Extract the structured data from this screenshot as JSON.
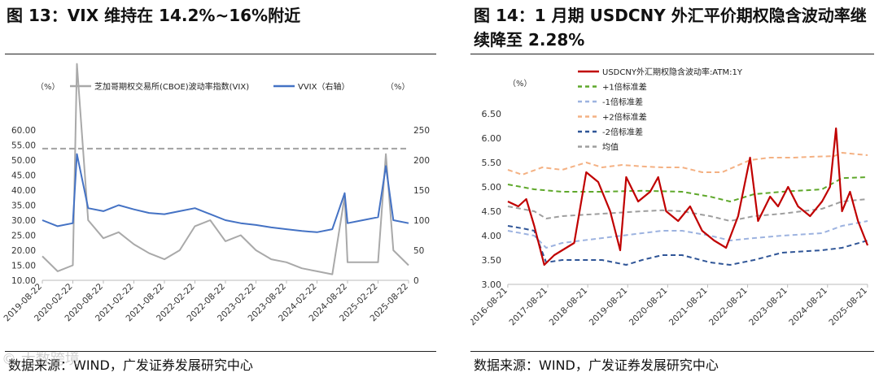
{
  "left": {
    "title": "图 13：VIX 维持在 14.2%~16%附近",
    "source": "数据来源：WIND，广发证券发展研究中心"
  },
  "right": {
    "title_line1": "图 14：1 月期 USDCNY 外汇平价期权隐含波动率继",
    "title_line2": "续降至 2.28%",
    "source": "数据来源：WIND，广发证券发展研究中心"
  },
  "watermark": "© 大数跨境",
  "colors": {
    "vix": "#a9a9a9",
    "vvix": "#4472c4",
    "usdcny": "#c00000",
    "sd1": "#5fa82b",
    "sdm1": "#9db3e0",
    "sd2": "#f4b183",
    "sdm2": "#2f5597",
    "mean": "#9e9e9e"
  },
  "chart_data": [
    {
      "type": "line",
      "title": "VIX 维持在 14.2%~16%附近",
      "yunit_left": "（%）",
      "yunit_right": "（%）",
      "x_ticks": [
        "2019-08-22",
        "2020-02-22",
        "2020-08-22",
        "2021-02-22",
        "2021-08-22",
        "2022-02-22",
        "2022-08-22",
        "2023-02-22",
        "2023-08-22",
        "2024-02-22",
        "2024-08-22",
        "2025-02-22",
        "2025-08-22"
      ],
      "y_left_ticks": [
        "10.00",
        "15.00",
        "20.00",
        "25.00",
        "30.00",
        "35.00",
        "40.00",
        "45.00",
        "50.00",
        "55.00",
        "60.00"
      ],
      "y_left_range": [
        10,
        60
      ],
      "y_right_ticks": [
        "0",
        "50",
        "100",
        "150",
        "200",
        "250"
      ],
      "y_right_range": [
        0,
        250
      ],
      "reference_line": {
        "axis": "left",
        "value": 53.8,
        "style": "dashed"
      },
      "series": [
        {
          "name": "芝加哥期权交易所(CBOE)波动率指数(VIX)",
          "axis": "left",
          "x": [
            "2019-08-22",
            "2019-11-22",
            "2020-02-22",
            "2020-03-16",
            "2020-05-22",
            "2020-08-22",
            "2020-11-22",
            "2021-02-22",
            "2021-05-22",
            "2021-08-22",
            "2021-11-22",
            "2022-02-22",
            "2022-05-22",
            "2022-08-22",
            "2022-11-22",
            "2023-02-22",
            "2023-05-22",
            "2023-08-22",
            "2023-11-22",
            "2024-02-22",
            "2024-05-22",
            "2024-08-05",
            "2024-08-22",
            "2024-11-22",
            "2025-02-22",
            "2025-04-08",
            "2025-05-22",
            "2025-08-22"
          ],
          "values": [
            18,
            13,
            15,
            82,
            30,
            24,
            26,
            22,
            19,
            17,
            20,
            28,
            30,
            23,
            25,
            20,
            17,
            16,
            14,
            13,
            12,
            38,
            16,
            16,
            16,
            52,
            20,
            15
          ]
        },
        {
          "name": "VVIX（右轴）",
          "axis": "right",
          "x": [
            "2019-08-22",
            "2019-11-22",
            "2020-02-22",
            "2020-03-16",
            "2020-05-22",
            "2020-08-22",
            "2020-11-22",
            "2021-02-22",
            "2021-05-22",
            "2021-08-22",
            "2021-11-22",
            "2022-02-22",
            "2022-05-22",
            "2022-08-22",
            "2022-11-22",
            "2023-02-22",
            "2023-05-22",
            "2023-08-22",
            "2023-11-22",
            "2024-02-22",
            "2024-05-22",
            "2024-08-05",
            "2024-08-22",
            "2024-11-22",
            "2025-02-22",
            "2025-04-08",
            "2025-05-22",
            "2025-08-22"
          ],
          "values": [
            100,
            90,
            95,
            210,
            120,
            115,
            125,
            118,
            112,
            110,
            115,
            120,
            110,
            100,
            95,
            92,
            88,
            85,
            82,
            80,
            85,
            145,
            95,
            100,
            105,
            190,
            100,
            95
          ]
        }
      ]
    },
    {
      "type": "line",
      "title": "1 月期 USDCNY 外汇平价期权隐含波动率继续降至 2.28%",
      "yunit": "（%）",
      "x_ticks": [
        "2016-08-21",
        "2017-08-21",
        "2018-08-21",
        "2019-08-21",
        "2020-08-21",
        "2021-08-21",
        "2022-08-21",
        "2023-08-21",
        "2024-08-21",
        "2025-08-21"
      ],
      "y_ticks": [
        "3.00",
        "3.50",
        "4.00",
        "4.50",
        "5.00",
        "5.50",
        "6.00",
        "6.50"
      ],
      "y_range": [
        3.0,
        6.5
      ],
      "x_range": [
        2016.64,
        2025.64
      ],
      "series": [
        {
          "name": "USDCNY外汇期权隐含波动率:ATM:1Y",
          "x": [
            2016.64,
            2016.9,
            2017.1,
            2017.3,
            2017.55,
            2017.8,
            2018.0,
            2018.3,
            2018.6,
            2018.9,
            2019.2,
            2019.45,
            2019.6,
            2019.9,
            2020.2,
            2020.4,
            2020.6,
            2020.9,
            2021.2,
            2021.5,
            2021.8,
            2022.1,
            2022.4,
            2022.7,
            2022.9,
            2023.2,
            2023.4,
            2023.65,
            2023.9,
            2024.2,
            2024.5,
            2024.7,
            2024.85,
            2025.0,
            2025.2,
            2025.4,
            2025.64
          ],
          "values": [
            4.7,
            4.6,
            4.75,
            4.2,
            3.4,
            3.6,
            3.7,
            3.85,
            5.3,
            5.1,
            4.5,
            3.7,
            5.2,
            4.7,
            4.9,
            5.2,
            4.5,
            4.3,
            4.6,
            4.1,
            3.9,
            3.75,
            4.4,
            5.6,
            4.3,
            4.8,
            4.6,
            5.0,
            4.6,
            4.4,
            4.7,
            5.0,
            6.2,
            4.5,
            4.9,
            4.3,
            3.8
          ]
        },
        {
          "name": "+1倍标准差",
          "x": [
            2016.64,
            2017.3,
            2018.0,
            2019.0,
            2020.0,
            2021.0,
            2021.7,
            2022.2,
            2022.8,
            2023.5,
            2024.5,
            2025.0,
            2025.64
          ],
          "values": [
            5.05,
            4.95,
            4.9,
            4.9,
            4.92,
            4.9,
            4.8,
            4.7,
            4.85,
            4.9,
            4.95,
            5.18,
            5.2
          ]
        },
        {
          "name": "-1倍标准差",
          "x": [
            2016.64,
            2017.3,
            2017.6,
            2018.0,
            2019.0,
            2020.0,
            2020.5,
            2021.0,
            2021.7,
            2022.2,
            2022.8,
            2023.5,
            2024.5,
            2025.0,
            2025.64
          ],
          "values": [
            4.1,
            4.0,
            3.75,
            3.85,
            3.95,
            4.05,
            4.1,
            4.1,
            4.0,
            3.9,
            3.95,
            4.0,
            4.05,
            4.2,
            4.3
          ]
        },
        {
          "name": "+2倍标准差",
          "x": [
            2016.64,
            2017.0,
            2017.5,
            2018.0,
            2018.6,
            2019.0,
            2019.5,
            2020.0,
            2020.5,
            2021.0,
            2021.5,
            2022.0,
            2022.7,
            2023.2,
            2023.8,
            2024.3,
            2024.8,
            2025.0,
            2025.64
          ],
          "values": [
            5.35,
            5.25,
            5.4,
            5.35,
            5.5,
            5.4,
            5.45,
            5.42,
            5.4,
            5.4,
            5.3,
            5.3,
            5.55,
            5.6,
            5.6,
            5.62,
            5.63,
            5.7,
            5.65
          ]
        },
        {
          "name": "-2倍标准差",
          "x": [
            2016.64,
            2017.0,
            2017.3,
            2017.6,
            2018.0,
            2019.0,
            2019.6,
            2020.0,
            2020.5,
            2021.0,
            2021.7,
            2022.2,
            2022.8,
            2023.5,
            2024.5,
            2025.0,
            2025.64
          ],
          "values": [
            4.2,
            4.15,
            4.1,
            3.45,
            3.5,
            3.5,
            3.4,
            3.5,
            3.6,
            3.6,
            3.45,
            3.4,
            3.5,
            3.65,
            3.7,
            3.75,
            3.9
          ]
        },
        {
          "name": "均值",
          "x": [
            2016.64,
            2017.3,
            2017.6,
            2018.0,
            2019.0,
            2020.0,
            2020.5,
            2021.0,
            2021.7,
            2022.2,
            2022.8,
            2023.5,
            2024.5,
            2025.0,
            2025.64
          ],
          "values": [
            4.6,
            4.5,
            4.35,
            4.4,
            4.45,
            4.5,
            4.52,
            4.5,
            4.4,
            4.3,
            4.4,
            4.45,
            4.55,
            4.7,
            4.75
          ]
        }
      ]
    }
  ]
}
